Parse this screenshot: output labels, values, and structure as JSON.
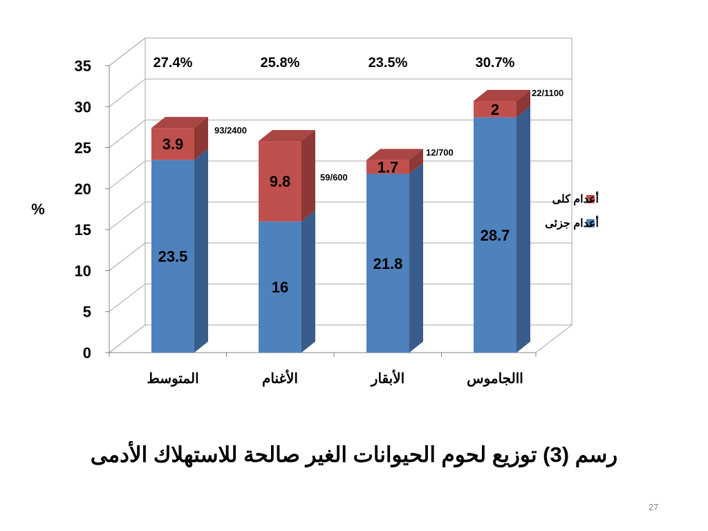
{
  "chart_data": {
    "type": "bar",
    "stacked": true,
    "three_d": true,
    "categories": [
      "المتوسط",
      "الأغنام",
      "الأبقار",
      "االجاموس"
    ],
    "series": [
      {
        "name": "أعدام جزئى",
        "values": [
          23.5,
          16,
          21.8,
          28.7
        ],
        "labels": [
          "23.5",
          "16",
          "21.8",
          "28.7"
        ],
        "color": "#4f81bd"
      },
      {
        "name": "أعدام كلى",
        "values": [
          3.9,
          9.8,
          1.7,
          2
        ],
        "labels": [
          "3.9",
          "9.8",
          "1.7",
          "2"
        ],
        "color": "#c0504d"
      }
    ],
    "totals_percent": [
      "27.4%",
      "25.8%",
      "23.5%",
      "30.7%"
    ],
    "ratio_labels": [
      "93/2400",
      "59/600",
      "12/700",
      "22/1100"
    ],
    "ylabel": "%",
    "ylim": [
      0,
      35
    ],
    "yticks": [
      "0",
      "5",
      "10",
      "15",
      "20",
      "25",
      "30",
      "35"
    ],
    "grid": true,
    "legend_position": "right"
  },
  "caption": "رسم (3) توزيع لحوم الحيوانات الغير صالحة للاستهلاك الأدمى",
  "page_number": "27"
}
